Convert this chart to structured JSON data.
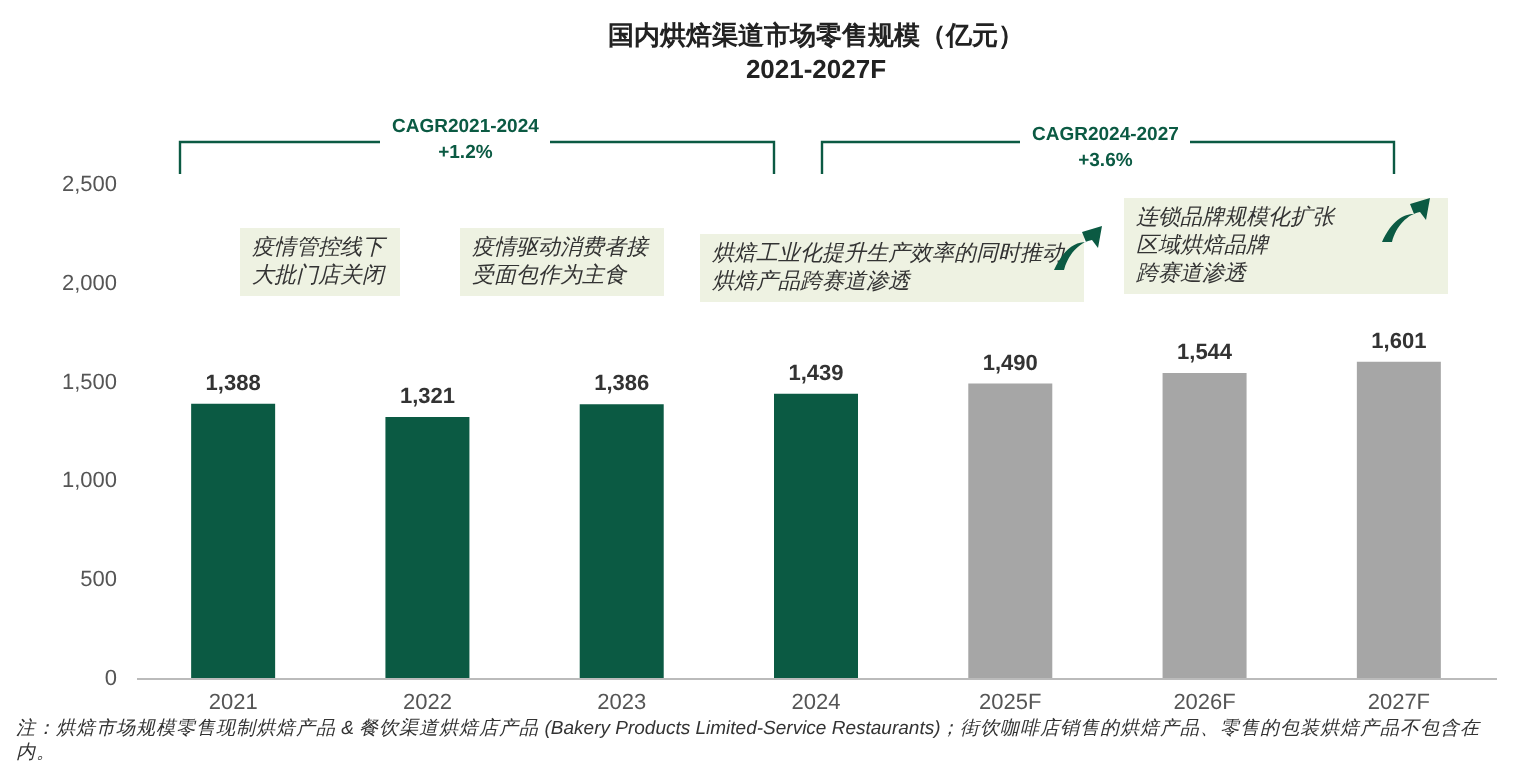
{
  "chart_data": {
    "type": "bar",
    "title": "国内烘焙渠道市场零售规模（亿元）",
    "subtitle": "2021-2027F",
    "categories": [
      "2021",
      "2022",
      "2023",
      "2024",
      "2025F",
      "2026F",
      "2027F"
    ],
    "values": [
      1388,
      1321,
      1386,
      1439,
      1490,
      1544,
      1601
    ],
    "colors": [
      "#0b5a43",
      "#0b5a43",
      "#0b5a43",
      "#0b5a43",
      "#a6a6a6",
      "#a6a6a6",
      "#a6a6a6"
    ],
    "ylim": [
      0,
      2500
    ],
    "yticks": [
      0,
      500,
      {
        "value": 1000,
        "label": "1,000"
      },
      {
        "value": 1500,
        "label": "1,500"
      },
      {
        "value": 2000,
        "label": "2,000"
      },
      {
        "value": 2500,
        "label": "2,500"
      }
    ],
    "grid": false,
    "value_labels": [
      "1,388",
      "1,321",
      "1,386",
      "1,439",
      "1,490",
      "1,544",
      "1,601"
    ],
    "annotations": [
      "CAGR2021-2024\n+1.2%",
      "CAGR2024-2027\n+3.6%",
      "疫情管控线下大批门店关闭",
      "疫情驱动消费者接受面包作为主食",
      "烘焙工业化提升生产效率的同时推动烘焙产品跨赛道渗透",
      "连锁品牌规模化扩张",
      "区域烘焙品牌",
      "跨赛道渗透",
      "注：烘焙市场规模零售现制烘焙产品 & 餐饮渠道烘焙店产品 (Bakery Products Limited-Service Restaurants)；街饮咖啡店销售的烘焙产品、零售的包装烘焙产品不包含在内。"
    ]
  }
}
